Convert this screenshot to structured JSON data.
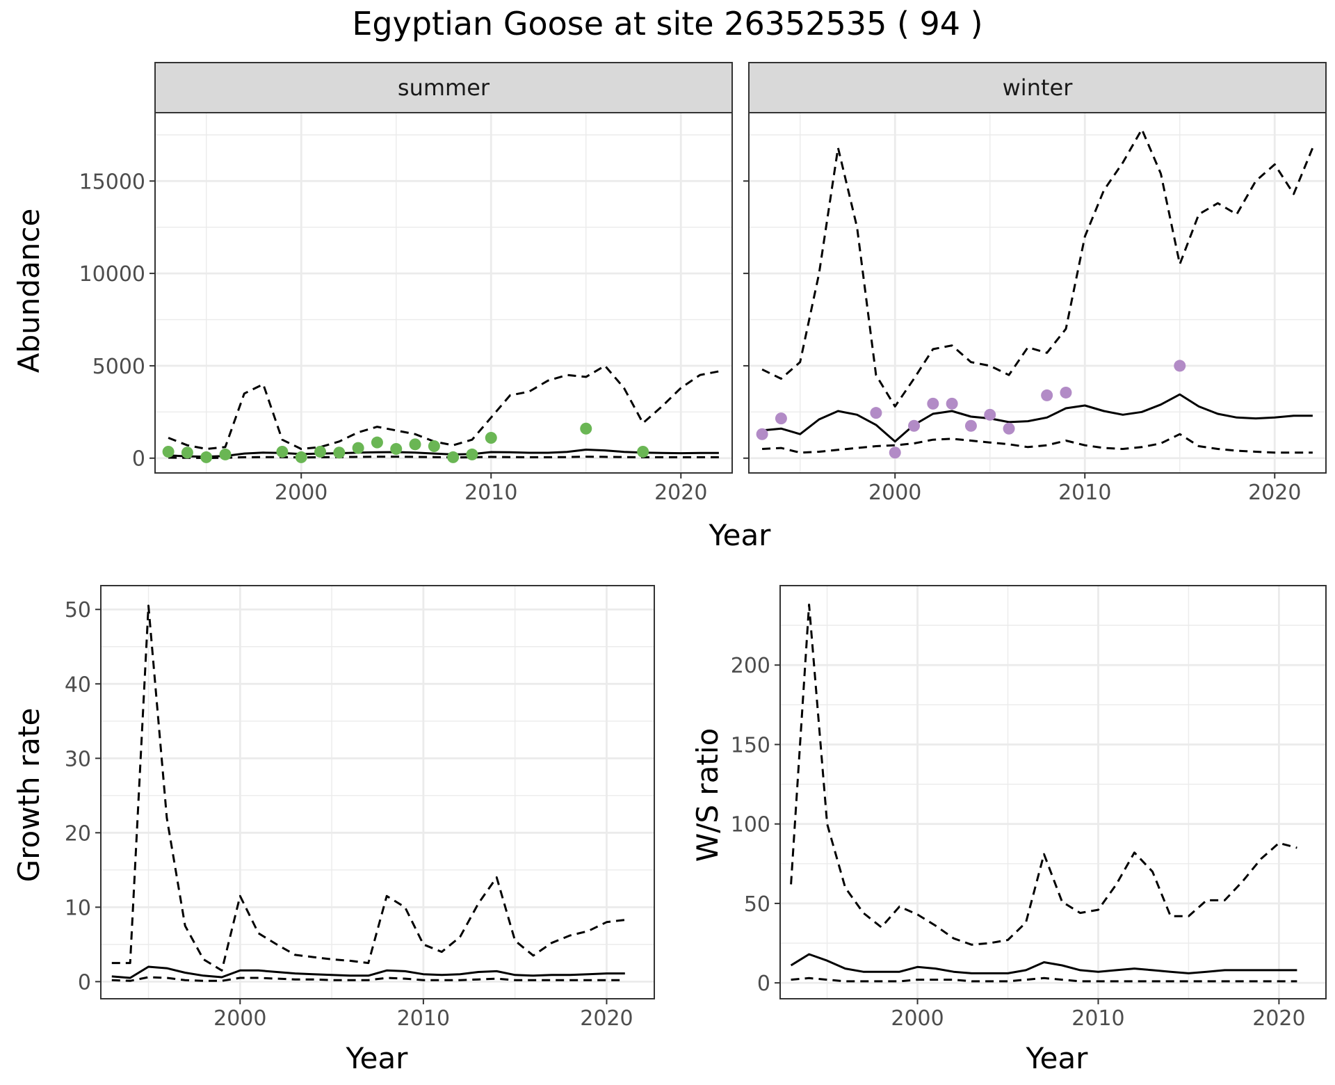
{
  "title": "Egyptian Goose at site 26352535 ( 94 )",
  "colors": {
    "summer_points": "#6ab654",
    "winter_points": "#b28bc6",
    "lines": "#000000",
    "strip_bg": "#d9d9d9",
    "grid": "#ebebeb"
  },
  "chart_data": [
    {
      "type": "line",
      "facet": "summer",
      "xlabel": "Year",
      "ylabel": "Abundance",
      "xticks": [
        2000,
        2010,
        2020
      ],
      "yticks": [
        0,
        5000,
        10000,
        15000
      ],
      "xlim": [
        1992.3,
        2022.7
      ],
      "ylim": [
        -800,
        18700
      ],
      "series": [
        {
          "style": "solid",
          "x": [
            1993,
            1994,
            1995,
            1996,
            1997,
            1998,
            1999,
            2000,
            2001,
            2002,
            2003,
            2004,
            2005,
            2006,
            2007,
            2008,
            2009,
            2010,
            2011,
            2012,
            2013,
            2014,
            2015,
            2016,
            2017,
            2018,
            2019,
            2020,
            2021,
            2022
          ],
          "y": [
            150,
            100,
            80,
            120,
            250,
            300,
            280,
            220,
            250,
            270,
            300,
            320,
            330,
            300,
            250,
            200,
            220,
            330,
            320,
            290,
            290,
            340,
            460,
            420,
            340,
            300,
            280,
            270,
            280,
            280
          ]
        },
        {
          "style": "dashed",
          "x": [
            1993,
            1994,
            1995,
            1996,
            1997,
            1998,
            1999,
            2000,
            2001,
            2002,
            2003,
            2004,
            2005,
            2006,
            2007,
            2008,
            2009,
            2010,
            2011,
            2012,
            2013,
            2014,
            2015,
            2016,
            2017,
            2018,
            2019,
            2020,
            2021,
            2022
          ],
          "y": [
            1100,
            700,
            500,
            600,
            3500,
            4000,
            1000,
            500,
            600,
            900,
            1400,
            1700,
            1500,
            1300,
            900,
            700,
            1000,
            2200,
            3400,
            3600,
            4200,
            4500,
            4400,
            5000,
            3800,
            1900,
            2800,
            3800,
            4500,
            4700
          ]
        },
        {
          "style": "dashed",
          "x": [
            1993,
            1994,
            1995,
            1996,
            1997,
            1998,
            1999,
            2000,
            2001,
            2002,
            2003,
            2004,
            2005,
            2006,
            2007,
            2008,
            2009,
            2010,
            2011,
            2012,
            2013,
            2014,
            2015,
            2016,
            2017,
            2018,
            2019,
            2020,
            2021,
            2022
          ],
          "y": [
            30,
            20,
            10,
            20,
            50,
            60,
            60,
            40,
            50,
            60,
            70,
            80,
            80,
            70,
            60,
            40,
            50,
            70,
            60,
            50,
            50,
            60,
            80,
            70,
            60,
            50,
            50,
            50,
            50,
            50
          ]
        }
      ],
      "points": {
        "x": [
          1993,
          1994,
          1995,
          1996,
          1999,
          2000,
          2001,
          2002,
          2003,
          2004,
          2005,
          2006,
          2007,
          2008,
          2009,
          2010,
          2015,
          2018
        ],
        "y": [
          350,
          300,
          50,
          200,
          350,
          50,
          350,
          300,
          550,
          850,
          500,
          750,
          650,
          50,
          200,
          1100,
          1600,
          350
        ]
      }
    },
    {
      "type": "line",
      "facet": "winter",
      "xlabel": "Year",
      "ylabel": "Abundance",
      "xticks": [
        2000,
        2010,
        2020
      ],
      "yticks": [
        0,
        5000,
        10000,
        15000
      ],
      "xlim": [
        1992.3,
        2022.7
      ],
      "ylim": [
        -800,
        18700
      ],
      "series": [
        {
          "style": "solid",
          "x": [
            1993,
            1994,
            1995,
            1996,
            1997,
            1998,
            1999,
            2000,
            2001,
            2002,
            2003,
            2004,
            2005,
            2006,
            2007,
            2008,
            2009,
            2010,
            2011,
            2012,
            2013,
            2014,
            2015,
            2016,
            2017,
            2018,
            2019,
            2020,
            2021,
            2022
          ],
          "y": [
            1500,
            1600,
            1300,
            2100,
            2550,
            2350,
            1800,
            900,
            1800,
            2400,
            2550,
            2250,
            2150,
            1950,
            2000,
            2200,
            2700,
            2850,
            2550,
            2350,
            2500,
            2900,
            3450,
            2800,
            2400,
            2200,
            2150,
            2200,
            2300,
            2300
          ]
        },
        {
          "style": "dashed",
          "x": [
            1993,
            1994,
            1995,
            1996,
            1997,
            1998,
            1999,
            2000,
            2001,
            2002,
            2003,
            2004,
            2005,
            2006,
            2007,
            2008,
            2009,
            2010,
            2011,
            2012,
            2013,
            2014,
            2015,
            2016,
            2017,
            2018,
            2019,
            2020,
            2021,
            2022
          ],
          "y": [
            4800,
            4300,
            5200,
            10000,
            16800,
            12500,
            4500,
            2800,
            4300,
            5900,
            6100,
            5200,
            5000,
            4500,
            6000,
            5700,
            7000,
            12000,
            14500,
            16000,
            17800,
            15400,
            10500,
            13200,
            13800,
            13200,
            15000,
            15900,
            14300,
            16800
          ]
        },
        {
          "style": "dashed",
          "x": [
            1993,
            1994,
            1995,
            1996,
            1997,
            1998,
            1999,
            2000,
            2001,
            2002,
            2003,
            2004,
            2005,
            2006,
            2007,
            2008,
            2009,
            2010,
            2011,
            2012,
            2013,
            2014,
            2015,
            2016,
            2017,
            2018,
            2019,
            2020,
            2021,
            2022
          ],
          "y": [
            500,
            550,
            300,
            350,
            450,
            550,
            650,
            700,
            800,
            1000,
            1050,
            950,
            850,
            750,
            600,
            700,
            950,
            700,
            550,
            500,
            600,
            800,
            1300,
            650,
            500,
            400,
            350,
            300,
            300,
            300
          ]
        }
      ],
      "points": {
        "x": [
          1993,
          1994,
          1999,
          2000,
          2001,
          2002,
          2003,
          2004,
          2005,
          2006,
          2008,
          2009,
          2015
        ],
        "y": [
          1300,
          2150,
          2450,
          300,
          1750,
          2950,
          2950,
          1750,
          2350,
          1600,
          3400,
          3550,
          5000
        ]
      }
    },
    {
      "type": "line",
      "xlabel": "Year",
      "ylabel": "Growth rate",
      "xticks": [
        2000,
        2010,
        2020
      ],
      "yticks": [
        0,
        10,
        20,
        30,
        40,
        50
      ],
      "xlim": [
        1992.4,
        2022.6
      ],
      "ylim": [
        -2.3,
        53.2
      ],
      "series": [
        {
          "style": "solid",
          "x": [
            1993,
            1994,
            1995,
            1996,
            1997,
            1998,
            1999,
            2000,
            2001,
            2002,
            2003,
            2004,
            2005,
            2006,
            2007,
            2008,
            2009,
            2010,
            2011,
            2012,
            2013,
            2014,
            2015,
            2016,
            2017,
            2018,
            2019,
            2020,
            2021
          ],
          "y": [
            0.7,
            0.5,
            2.0,
            1.8,
            1.2,
            0.8,
            0.6,
            1.5,
            1.5,
            1.3,
            1.1,
            1.0,
            0.9,
            0.8,
            0.8,
            1.5,
            1.4,
            1.0,
            0.9,
            1.0,
            1.3,
            1.4,
            0.9,
            0.8,
            0.9,
            0.9,
            1.0,
            1.1,
            1.1
          ]
        },
        {
          "style": "dashed",
          "x": [
            1993,
            1994,
            1995,
            1996,
            1997,
            1998,
            1999,
            2000,
            2001,
            2002,
            2003,
            2004,
            2005,
            2006,
            2007,
            2008,
            2009,
            2010,
            2011,
            2012,
            2013,
            2014,
            2015,
            2016,
            2017,
            2018,
            2019,
            2020,
            2021
          ],
          "y": [
            2.5,
            2.5,
            50.5,
            22.0,
            7.5,
            3.0,
            1.5,
            11.5,
            6.5,
            5.0,
            3.6,
            3.3,
            3.0,
            2.8,
            2.5,
            11.5,
            10.0,
            5.0,
            4.0,
            6.0,
            10.5,
            14.0,
            5.5,
            3.5,
            5.2,
            6.2,
            6.8,
            8.0,
            8.3
          ]
        },
        {
          "style": "dashed",
          "x": [
            1993,
            1994,
            1995,
            1996,
            1997,
            1998,
            1999,
            2000,
            2001,
            2002,
            2003,
            2004,
            2005,
            2006,
            2007,
            2008,
            2009,
            2010,
            2011,
            2012,
            2013,
            2014,
            2015,
            2016,
            2017,
            2018,
            2019,
            2020,
            2021
          ],
          "y": [
            0.2,
            0.1,
            0.6,
            0.5,
            0.2,
            0.1,
            0.1,
            0.5,
            0.5,
            0.4,
            0.3,
            0.3,
            0.2,
            0.2,
            0.2,
            0.5,
            0.4,
            0.2,
            0.2,
            0.2,
            0.3,
            0.4,
            0.2,
            0.2,
            0.2,
            0.2,
            0.2,
            0.2,
            0.2
          ]
        }
      ]
    },
    {
      "type": "line",
      "xlabel": "Year",
      "ylabel": "W/S ratio",
      "xticks": [
        2000,
        2010,
        2020
      ],
      "yticks": [
        0,
        50,
        100,
        150,
        200
      ],
      "xlim": [
        1992.4,
        2022.6
      ],
      "ylim": [
        -10,
        250
      ],
      "series": [
        {
          "style": "solid",
          "x": [
            1993,
            1994,
            1995,
            1996,
            1997,
            1998,
            1999,
            2000,
            2001,
            2002,
            2003,
            2004,
            2005,
            2006,
            2007,
            2008,
            2009,
            2010,
            2011,
            2012,
            2013,
            2014,
            2015,
            2016,
            2017,
            2018,
            2019,
            2020,
            2021
          ],
          "y": [
            11,
            18,
            14,
            9,
            7,
            7,
            7,
            10,
            9,
            7,
            6,
            6,
            6,
            8,
            13,
            11,
            8,
            7,
            8,
            9,
            8,
            7,
            6,
            7,
            8,
            8,
            8,
            8,
            8
          ]
        },
        {
          "style": "dashed",
          "x": [
            1993,
            1994,
            1995,
            1996,
            1997,
            1998,
            1999,
            2000,
            2001,
            2002,
            2003,
            2004,
            2005,
            2006,
            2007,
            2008,
            2009,
            2010,
            2011,
            2012,
            2013,
            2014,
            2015,
            2016,
            2017,
            2018,
            2019,
            2020,
            2021
          ],
          "y": [
            62,
            238,
            100,
            60,
            44,
            35,
            48,
            43,
            36,
            28,
            24,
            25,
            27,
            38,
            81,
            51,
            44,
            46,
            62,
            82,
            70,
            42,
            42,
            52,
            52,
            64,
            78,
            88,
            85
          ]
        },
        {
          "style": "dashed",
          "x": [
            1993,
            1994,
            1995,
            1996,
            1997,
            1998,
            1999,
            2000,
            2001,
            2002,
            2003,
            2004,
            2005,
            2006,
            2007,
            2008,
            2009,
            2010,
            2011,
            2012,
            2013,
            2014,
            2015,
            2016,
            2017,
            2018,
            2019,
            2020,
            2021
          ],
          "y": [
            2,
            3,
            2,
            1,
            1,
            1,
            1,
            2,
            2,
            2,
            1,
            1,
            1,
            2,
            3,
            2,
            1,
            1,
            1,
            1,
            1,
            1,
            1,
            1,
            1,
            1,
            1,
            1,
            1
          ]
        }
      ]
    }
  ]
}
